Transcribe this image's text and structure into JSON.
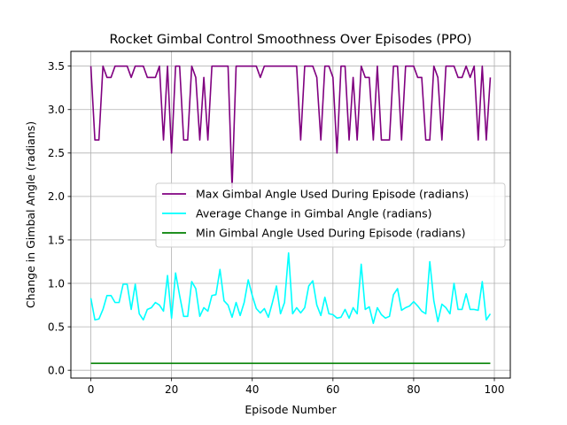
{
  "chart_data": {
    "type": "line",
    "title": "Rocket Gimbal Control Smoothness Over Episodes (PPO)",
    "xlabel": "Episode Number",
    "ylabel": "Change in Gimbal Angle (radians)",
    "xlim": [
      -4.95,
      103.95
    ],
    "ylim": [
      -0.09,
      3.67
    ],
    "xticks": [
      0,
      20,
      40,
      60,
      80,
      100
    ],
    "yticks": [
      0.0,
      0.5,
      1.0,
      1.5,
      2.0,
      2.5,
      3.0,
      3.5
    ],
    "xtick_labels": [
      "0",
      "20",
      "40",
      "60",
      "80",
      "100"
    ],
    "ytick_labels": [
      "0.0",
      "0.5",
      "1.0",
      "1.5",
      "2.0",
      "2.5",
      "3.0",
      "3.5"
    ],
    "grid": true,
    "legend_position": "center-right",
    "x": [
      0,
      1,
      2,
      3,
      4,
      5,
      6,
      7,
      8,
      9,
      10,
      11,
      12,
      13,
      14,
      15,
      16,
      17,
      18,
      19,
      20,
      21,
      22,
      23,
      24,
      25,
      26,
      27,
      28,
      29,
      30,
      31,
      32,
      33,
      34,
      35,
      36,
      37,
      38,
      39,
      40,
      41,
      42,
      43,
      44,
      45,
      46,
      47,
      48,
      49,
      50,
      51,
      52,
      53,
      54,
      55,
      56,
      57,
      58,
      59,
      60,
      61,
      62,
      63,
      64,
      65,
      66,
      67,
      68,
      69,
      70,
      71,
      72,
      73,
      74,
      75,
      76,
      77,
      78,
      79,
      80,
      81,
      82,
      83,
      84,
      85,
      86,
      87,
      88,
      89,
      90,
      91,
      92,
      93,
      94,
      95,
      96,
      97,
      98,
      99
    ],
    "series": [
      {
        "name": "Max Gimbal Angle Used During Episode (radians)",
        "color": "#800080",
        "values": [
          3.5,
          2.65,
          2.65,
          3.5,
          3.37,
          3.37,
          3.5,
          3.5,
          3.5,
          3.5,
          3.37,
          3.5,
          3.5,
          3.5,
          3.37,
          3.37,
          3.37,
          3.5,
          2.65,
          3.5,
          2.5,
          3.5,
          3.5,
          2.65,
          2.65,
          3.5,
          3.37,
          2.65,
          3.37,
          2.65,
          3.5,
          3.5,
          3.5,
          3.5,
          3.5,
          2.1,
          3.5,
          3.5,
          3.5,
          3.5,
          3.5,
          3.5,
          3.37,
          3.5,
          3.5,
          3.5,
          3.5,
          3.5,
          3.5,
          3.5,
          3.5,
          3.5,
          2.65,
          3.5,
          3.5,
          3.5,
          3.37,
          2.65,
          3.5,
          3.5,
          3.37,
          2.5,
          3.5,
          3.5,
          2.65,
          3.37,
          2.65,
          3.5,
          3.37,
          3.37,
          2.65,
          3.5,
          2.65,
          2.65,
          2.65,
          3.5,
          3.5,
          2.65,
          3.5,
          3.5,
          3.5,
          3.37,
          3.37,
          2.65,
          2.65,
          3.5,
          3.37,
          2.65,
          3.5,
          3.5,
          3.5,
          3.37,
          3.37,
          3.5,
          3.37,
          3.5,
          2.65,
          3.5,
          2.65,
          3.37
        ]
      },
      {
        "name": "Average Change in Gimbal Angle (radians)",
        "color": "#00ffff",
        "values": [
          0.83,
          0.58,
          0.59,
          0.7,
          0.86,
          0.86,
          0.78,
          0.78,
          0.99,
          0.99,
          0.7,
          0.99,
          0.65,
          0.58,
          0.7,
          0.72,
          0.78,
          0.75,
          0.68,
          1.09,
          0.6,
          1.12,
          0.86,
          0.62,
          0.62,
          1.02,
          0.94,
          0.62,
          0.72,
          0.68,
          0.86,
          0.87,
          1.16,
          0.8,
          0.75,
          0.61,
          0.78,
          0.63,
          0.78,
          1.04,
          0.86,
          0.71,
          0.66,
          0.71,
          0.61,
          0.78,
          0.97,
          0.65,
          0.78,
          1.35,
          0.65,
          0.72,
          0.66,
          0.72,
          0.97,
          1.03,
          0.75,
          0.63,
          0.84,
          0.65,
          0.64,
          0.6,
          0.61,
          0.7,
          0.6,
          0.72,
          0.65,
          1.22,
          0.7,
          0.73,
          0.54,
          0.72,
          0.64,
          0.6,
          0.62,
          0.87,
          0.94,
          0.69,
          0.72,
          0.74,
          0.79,
          0.74,
          0.68,
          0.65,
          1.25,
          0.8,
          0.56,
          0.76,
          0.72,
          0.65,
          1.0,
          0.7,
          0.7,
          0.88,
          0.7,
          0.7,
          0.69,
          1.02,
          0.58,
          0.65
        ]
      },
      {
        "name": "Min Gimbal Angle Used During Episode (radians)",
        "color": "#008000",
        "values": [
          0.08,
          0.08,
          0.08,
          0.08,
          0.08,
          0.08,
          0.08,
          0.08,
          0.08,
          0.08,
          0.08,
          0.08,
          0.08,
          0.08,
          0.08,
          0.08,
          0.08,
          0.08,
          0.08,
          0.08,
          0.08,
          0.08,
          0.08,
          0.08,
          0.08,
          0.08,
          0.08,
          0.08,
          0.08,
          0.08,
          0.08,
          0.08,
          0.08,
          0.08,
          0.08,
          0.08,
          0.08,
          0.08,
          0.08,
          0.08,
          0.08,
          0.08,
          0.08,
          0.08,
          0.08,
          0.08,
          0.08,
          0.08,
          0.08,
          0.08,
          0.08,
          0.08,
          0.08,
          0.08,
          0.08,
          0.08,
          0.08,
          0.08,
          0.08,
          0.08,
          0.08,
          0.08,
          0.08,
          0.08,
          0.08,
          0.08,
          0.08,
          0.08,
          0.08,
          0.08,
          0.08,
          0.08,
          0.08,
          0.08,
          0.08,
          0.08,
          0.08,
          0.08,
          0.08,
          0.08,
          0.08,
          0.08,
          0.08,
          0.08,
          0.08,
          0.08,
          0.08,
          0.08,
          0.08,
          0.08,
          0.08,
          0.08,
          0.08,
          0.08,
          0.08,
          0.08,
          0.08,
          0.08,
          0.08,
          0.08
        ]
      }
    ]
  }
}
